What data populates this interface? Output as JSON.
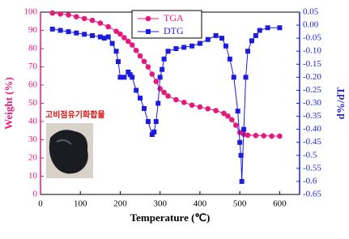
{
  "chart_data": {
    "type": "line",
    "xlabel": "Temperature (℃)",
    "ylabel": "Weight (%)",
    "y2label": "d%/dT",
    "annotation": "고비점유기화합물",
    "xlim": [
      0,
      650
    ],
    "xticks": [
      0,
      100,
      200,
      300,
      400,
      500,
      600
    ],
    "ylim": [
      0,
      100
    ],
    "yticks": [
      0,
      10,
      20,
      30,
      40,
      50,
      60,
      70,
      80,
      90,
      100
    ],
    "y2lim": [
      -0.65,
      0.05
    ],
    "y2ticks": [
      -0.65,
      -0.6,
      -0.55,
      -0.5,
      -0.45,
      {
        "value": -0.4,
        "label": "-0.40"
      },
      -0.35,
      {
        "value": -0.3,
        "label": "-0.30"
      },
      -0.25,
      {
        "value": -0.2,
        "label": "-0.20"
      },
      -0.15,
      {
        "value": -0.1,
        "label": "-0.10"
      },
      -0.05,
      {
        "value": 0,
        "label": "0.00"
      },
      0.05
    ],
    "series": [
      {
        "name": "TGA",
        "color": "#e8177d",
        "marker": "circle",
        "x": [
          30,
          50,
          70,
          90,
          110,
          130,
          150,
          170,
          190,
          200,
          210,
          220,
          230,
          240,
          250,
          260,
          270,
          280,
          290,
          300,
          310,
          320,
          340,
          360,
          380,
          400,
          420,
          440,
          460,
          470,
          480,
          490,
          500,
          510,
          520,
          540,
          560,
          580,
          600
        ],
        "values": [
          99.5,
          99,
          98.5,
          97.5,
          96.5,
          95.5,
          94,
          92,
          89.5,
          88,
          86,
          84,
          82,
          79,
          76,
          73,
          70,
          66,
          62,
          58,
          56,
          54,
          52,
          50.5,
          49,
          48,
          47,
          46,
          44.5,
          43,
          41,
          38,
          34,
          33,
          32.5,
          32.3,
          32.2,
          32,
          32
        ]
      },
      {
        "name": "DTG",
        "color": "#1c1ce0",
        "marker": "square",
        "axis": "y2",
        "x": [
          30,
          50,
          70,
          90,
          110,
          130,
          150,
          160,
          170,
          180,
          190,
          195,
          200,
          210,
          220,
          225,
          230,
          240,
          250,
          260,
          270,
          280,
          285,
          290,
          295,
          300,
          305,
          310,
          320,
          340,
          360,
          380,
          400,
          420,
          440,
          455,
          465,
          475,
          485,
          495,
          500,
          503,
          505,
          510,
          515,
          520,
          530,
          540,
          550,
          570,
          600
        ],
        "values": [
          -0.015,
          -0.02,
          -0.025,
          -0.03,
          -0.035,
          -0.04,
          -0.045,
          -0.05,
          -0.045,
          -0.07,
          -0.1,
          -0.14,
          -0.2,
          -0.2,
          -0.18,
          -0.19,
          -0.2,
          -0.25,
          -0.28,
          -0.32,
          -0.37,
          -0.42,
          -0.41,
          -0.37,
          -0.3,
          -0.2,
          -0.17,
          -0.13,
          -0.1,
          -0.09,
          -0.085,
          -0.08,
          -0.07,
          -0.055,
          -0.04,
          -0.05,
          -0.08,
          -0.13,
          -0.2,
          -0.33,
          -0.45,
          -0.5,
          -0.6,
          -0.4,
          -0.2,
          -0.1,
          -0.06,
          -0.04,
          -0.02,
          -0.01,
          -0.01
        ]
      }
    ]
  }
}
